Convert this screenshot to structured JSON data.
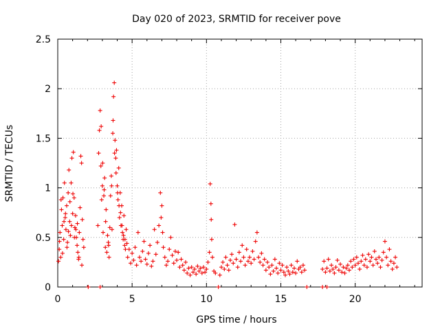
{
  "chart_data": {
    "type": "scatter",
    "title": "Day 020 of 2023, SRMTID for receiver pove",
    "xlabel": "GPS time / hours",
    "ylabel": "SRMTID / TECUs",
    "xlim": [
      0,
      24.5
    ],
    "ylim": [
      0,
      2.5
    ],
    "xticks": [
      0,
      5,
      10,
      15,
      20
    ],
    "xtick_labels": [
      "0",
      "5",
      "10",
      "15",
      "20"
    ],
    "yticks": [
      0,
      0.5,
      1,
      1.5,
      2,
      2.5
    ],
    "ytick_labels": [
      "0",
      "0.5",
      "1",
      "1.5",
      "2",
      "2.5"
    ],
    "grid": true,
    "marker": "+",
    "series": [
      {
        "name": "SRMTID",
        "color": "#ee0000",
        "points": [
          [
            0.05,
            0.26
          ],
          [
            0.1,
            0.38
          ],
          [
            0.15,
            0.55
          ],
          [
            0.2,
            0.3
          ],
          [
            0.25,
            0.78
          ],
          [
            0.3,
            0.62
          ],
          [
            0.35,
            0.9
          ],
          [
            0.4,
            0.48
          ],
          [
            0.45,
            1.05
          ],
          [
            0.5,
            0.7
          ],
          [
            0.55,
            0.58
          ],
          [
            0.6,
            0.82
          ],
          [
            0.65,
            0.45
          ],
          [
            0.7,
            0.95
          ],
          [
            0.75,
            1.18
          ],
          [
            0.8,
            0.66
          ],
          [
            0.85,
            0.52
          ],
          [
            0.9,
            1.05
          ],
          [
            0.95,
            1.3
          ],
          [
            1.0,
            0.74
          ],
          [
            1.05,
            1.36
          ],
          [
            1.1,
            0.9
          ],
          [
            1.15,
            0.6
          ],
          [
            1.2,
            0.72
          ],
          [
            1.25,
            0.5
          ],
          [
            1.3,
            0.42
          ],
          [
            1.35,
            0.35
          ],
          [
            1.4,
            0.28
          ],
          [
            1.45,
            0.55
          ],
          [
            1.5,
            0.8
          ],
          [
            1.55,
            1.32
          ],
          [
            1.6,
            1.25
          ],
          [
            1.65,
            0.68
          ],
          [
            1.7,
            0.48
          ],
          [
            1.75,
            0.4
          ],
          [
            0.12,
            0.46
          ],
          [
            0.22,
            0.88
          ],
          [
            0.42,
            0.66
          ],
          [
            0.62,
            0.4
          ],
          [
            0.82,
            0.86
          ],
          [
            1.02,
            0.94
          ],
          [
            1.22,
            0.58
          ],
          [
            1.42,
            0.3
          ],
          [
            1.62,
            0.22
          ],
          [
            0.32,
            0.34
          ],
          [
            0.52,
            0.74
          ],
          [
            0.72,
            0.56
          ],
          [
            0.92,
            0.62
          ],
          [
            1.12,
            0.5
          ],
          [
            1.32,
            0.64
          ],
          [
            2.05,
            0.0
          ],
          [
            2.85,
            0.0
          ],
          [
            2.7,
            0.62
          ],
          [
            2.75,
            1.35
          ],
          [
            2.8,
            1.58
          ],
          [
            2.85,
            1.78
          ],
          [
            2.9,
            1.22
          ],
          [
            2.95,
            0.88
          ],
          [
            3.0,
            1.02
          ],
          [
            3.05,
            0.55
          ],
          [
            3.1,
            0.92
          ],
          [
            3.15,
            1.1
          ],
          [
            3.2,
            0.4
          ],
          [
            3.25,
            0.78
          ],
          [
            3.3,
            0.35
          ],
          [
            3.35,
            0.52
          ],
          [
            3.4,
            0.45
          ],
          [
            3.45,
            0.3
          ],
          [
            3.5,
            0.6
          ],
          [
            3.55,
            0.92
          ],
          [
            3.6,
            1.12
          ],
          [
            3.65,
            0.58
          ],
          [
            3.7,
            1.55
          ],
          [
            3.75,
            1.92
          ],
          [
            3.8,
            2.06
          ],
          [
            3.85,
            1.48
          ],
          [
            3.9,
            1.3
          ],
          [
            3.95,
            1.38
          ],
          [
            4.0,
            1.02
          ],
          [
            4.05,
            0.88
          ],
          [
            4.1,
            1.2
          ],
          [
            4.15,
            0.7
          ],
          [
            4.2,
            0.95
          ],
          [
            4.25,
            0.62
          ],
          [
            4.3,
            0.82
          ],
          [
            4.35,
            0.55
          ],
          [
            4.4,
            0.48
          ],
          [
            4.45,
            0.72
          ],
          [
            4.5,
            0.42
          ],
          [
            4.55,
            0.38
          ],
          [
            4.6,
            0.58
          ],
          [
            4.65,
            0.44
          ],
          [
            2.92,
            1.62
          ],
          [
            3.02,
            1.25
          ],
          [
            3.12,
            0.98
          ],
          [
            3.22,
            0.66
          ],
          [
            3.42,
            0.42
          ],
          [
            3.62,
            1.02
          ],
          [
            3.72,
            1.68
          ],
          [
            3.82,
            1.35
          ],
          [
            3.92,
            1.15
          ],
          [
            4.02,
            0.95
          ],
          [
            4.12,
            0.82
          ],
          [
            4.22,
            0.75
          ],
          [
            4.32,
            0.62
          ],
          [
            4.42,
            0.52
          ],
          [
            4.52,
            0.48
          ],
          [
            4.7,
            0.3
          ],
          [
            4.8,
            0.38
          ],
          [
            4.9,
            0.24
          ],
          [
            5.0,
            0.34
          ],
          [
            5.1,
            0.27
          ],
          [
            5.2,
            0.4
          ],
          [
            5.3,
            0.22
          ],
          [
            5.4,
            0.55
          ],
          [
            5.5,
            0.3
          ],
          [
            5.6,
            0.26
          ],
          [
            5.7,
            0.36
          ],
          [
            5.8,
            0.46
          ],
          [
            5.9,
            0.28
          ],
          [
            6.0,
            0.23
          ],
          [
            6.1,
            0.34
          ],
          [
            6.2,
            0.42
          ],
          [
            6.3,
            0.21
          ],
          [
            6.4,
            0.26
          ],
          [
            6.5,
            0.58
          ],
          [
            6.6,
            0.33
          ],
          [
            6.7,
            0.45
          ],
          [
            6.8,
            0.62
          ],
          [
            6.9,
            0.95
          ],
          [
            6.95,
            0.7
          ],
          [
            7.0,
            0.82
          ],
          [
            7.05,
            0.55
          ],
          [
            7.1,
            0.4
          ],
          [
            7.2,
            0.3
          ],
          [
            7.3,
            0.22
          ],
          [
            7.4,
            0.26
          ],
          [
            7.5,
            0.38
          ],
          [
            7.6,
            0.5
          ],
          [
            7.7,
            0.32
          ],
          [
            7.8,
            0.24
          ],
          [
            7.9,
            0.36
          ],
          [
            8.0,
            0.27
          ],
          [
            8.1,
            0.35
          ],
          [
            8.2,
            0.2
          ],
          [
            8.3,
            0.28
          ],
          [
            8.4,
            0.22
          ],
          [
            8.5,
            0.17
          ],
          [
            8.6,
            0.25
          ],
          [
            8.7,
            0.14
          ],
          [
            8.8,
            0.19
          ],
          [
            8.9,
            0.12
          ],
          [
            9.0,
            0.2
          ],
          [
            9.1,
            0.15
          ],
          [
            9.2,
            0.18
          ],
          [
            9.3,
            0.13
          ],
          [
            9.4,
            0.21
          ],
          [
            9.5,
            0.16
          ],
          [
            9.6,
            0.19
          ],
          [
            9.7,
            0.14
          ],
          [
            9.8,
            0.2
          ],
          [
            9.9,
            0.15
          ],
          [
            10.0,
            0.18
          ],
          [
            10.1,
            0.25
          ],
          [
            10.2,
            0.35
          ],
          [
            10.25,
            1.04
          ],
          [
            10.3,
            0.84
          ],
          [
            10.32,
            0.68
          ],
          [
            10.35,
            0.48
          ],
          [
            10.4,
            0.3
          ],
          [
            10.5,
            0.16
          ],
          [
            10.6,
            0.14
          ],
          [
            10.8,
            0.0
          ],
          [
            10.9,
            0.12
          ],
          [
            11.0,
            0.2
          ],
          [
            11.1,
            0.25
          ],
          [
            11.2,
            0.18
          ],
          [
            11.3,
            0.3
          ],
          [
            11.4,
            0.22
          ],
          [
            11.5,
            0.17
          ],
          [
            11.6,
            0.27
          ],
          [
            11.7,
            0.33
          ],
          [
            11.8,
            0.24
          ],
          [
            11.9,
            0.63
          ],
          [
            12.0,
            0.28
          ],
          [
            12.1,
            0.2
          ],
          [
            12.2,
            0.35
          ],
          [
            12.3,
            0.26
          ],
          [
            12.4,
            0.42
          ],
          [
            12.5,
            0.3
          ],
          [
            12.6,
            0.22
          ],
          [
            12.7,
            0.38
          ],
          [
            12.8,
            0.26
          ],
          [
            12.9,
            0.3
          ],
          [
            13.0,
            0.24
          ],
          [
            13.1,
            0.36
          ],
          [
            13.2,
            0.28
          ],
          [
            13.3,
            0.46
          ],
          [
            13.4,
            0.55
          ],
          [
            13.5,
            0.3
          ],
          [
            13.6,
            0.25
          ],
          [
            13.7,
            0.34
          ],
          [
            13.8,
            0.22
          ],
          [
            13.9,
            0.28
          ],
          [
            14.0,
            0.17
          ],
          [
            14.1,
            0.25
          ],
          [
            14.2,
            0.2
          ],
          [
            14.3,
            0.13
          ],
          [
            14.4,
            0.22
          ],
          [
            14.5,
            0.16
          ],
          [
            14.6,
            0.28
          ],
          [
            14.7,
            0.19
          ],
          [
            14.8,
            0.14
          ],
          [
            14.9,
            0.24
          ],
          [
            15.0,
            0.17
          ],
          [
            15.1,
            0.22
          ],
          [
            15.2,
            0.15
          ],
          [
            15.3,
            0.12
          ],
          [
            15.4,
            0.2
          ],
          [
            15.5,
            0.16
          ],
          [
            15.6,
            0.13
          ],
          [
            15.7,
            0.22
          ],
          [
            15.8,
            0.15
          ],
          [
            15.9,
            0.19
          ],
          [
            16.0,
            0.14
          ],
          [
            16.1,
            0.26
          ],
          [
            16.2,
            0.18
          ],
          [
            16.3,
            0.2
          ],
          [
            16.4,
            0.15
          ],
          [
            16.5,
            0.22
          ],
          [
            16.6,
            0.17
          ],
          [
            16.75,
            0.0
          ],
          [
            17.8,
            0.0
          ],
          [
            18.1,
            0.0
          ],
          [
            17.8,
            0.18
          ],
          [
            17.9,
            0.26
          ],
          [
            18.0,
            0.15
          ],
          [
            18.1,
            0.19
          ],
          [
            18.2,
            0.28
          ],
          [
            18.3,
            0.16
          ],
          [
            18.4,
            0.22
          ],
          [
            18.5,
            0.18
          ],
          [
            18.6,
            0.14
          ],
          [
            18.7,
            0.2
          ],
          [
            18.8,
            0.27
          ],
          [
            18.9,
            0.17
          ],
          [
            19.0,
            0.23
          ],
          [
            19.1,
            0.15
          ],
          [
            19.2,
            0.2
          ],
          [
            19.3,
            0.14
          ],
          [
            19.4,
            0.19
          ],
          [
            19.5,
            0.22
          ],
          [
            19.6,
            0.17
          ],
          [
            19.7,
            0.26
          ],
          [
            19.8,
            0.2
          ],
          [
            19.9,
            0.28
          ],
          [
            20.0,
            0.22
          ],
          [
            20.1,
            0.3
          ],
          [
            20.2,
            0.24
          ],
          [
            20.3,
            0.18
          ],
          [
            20.4,
            0.26
          ],
          [
            20.5,
            0.32
          ],
          [
            20.6,
            0.22
          ],
          [
            20.7,
            0.28
          ],
          [
            20.8,
            0.2
          ],
          [
            20.9,
            0.33
          ],
          [
            21.0,
            0.26
          ],
          [
            21.1,
            0.3
          ],
          [
            21.2,
            0.22
          ],
          [
            21.3,
            0.36
          ],
          [
            21.4,
            0.28
          ],
          [
            21.5,
            0.24
          ],
          [
            21.6,
            0.3
          ],
          [
            21.7,
            0.2
          ],
          [
            21.8,
            0.27
          ],
          [
            21.9,
            0.35
          ],
          [
            22.0,
            0.46
          ],
          [
            22.1,
            0.3
          ],
          [
            22.2,
            0.22
          ],
          [
            22.3,
            0.38
          ],
          [
            22.4,
            0.26
          ],
          [
            22.5,
            0.18
          ],
          [
            22.6,
            0.24
          ],
          [
            22.7,
            0.3
          ],
          [
            22.8,
            0.2
          ]
        ]
      }
    ]
  }
}
